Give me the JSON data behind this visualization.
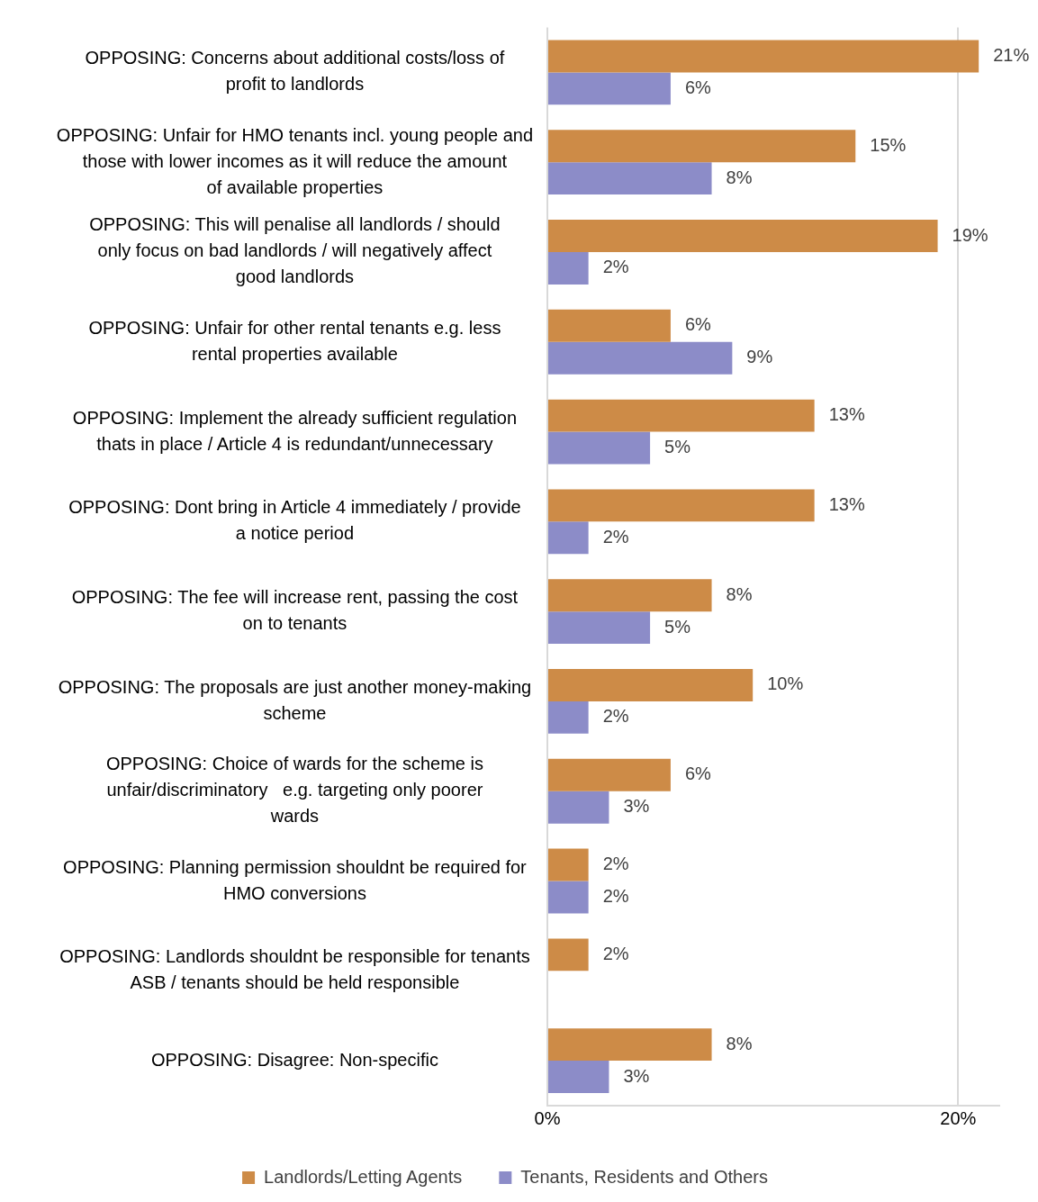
{
  "chart_data": {
    "type": "bar",
    "orientation": "horizontal",
    "categories": [
      "OPPOSING: Concerns about additional costs/loss of profit to landlords",
      "OPPOSING: Unfair for HMO tenants incl. young people and those with lower incomes as it will reduce the amount of available properties",
      "OPPOSING: This will penalise all landlords / should only focus on bad landlords / will negatively affect good landlords",
      "OPPOSING: Unfair for other rental tenants e.g. less rental properties available",
      "OPPOSING: Implement the already sufficient regulation thats in place / Article 4 is redundant/unnecessary",
      "OPPOSING: Dont bring in Article 4 immediately / provide a notice period",
      "OPPOSING: The fee will increase rent, passing the cost on to tenants",
      "OPPOSING: The proposals are just another money-making scheme",
      "OPPOSING: Choice of wards for the scheme is unfair/discriminatory   e.g. targeting only poorer wards",
      "OPPOSING: Planning permission shouldnt be required for HMO conversions",
      "OPPOSING: Landlords shouldnt be responsible for tenants ASB / tenants should be held responsible",
      "OPPOSING: Disagree: Non-specific"
    ],
    "series": [
      {
        "name": "Landlords/Letting Agents",
        "color": "#cd8b47",
        "values": [
          21,
          15,
          19,
          6,
          13,
          13,
          8,
          10,
          6,
          2,
          2,
          8
        ],
        "value_labels": [
          "21%",
          "15%",
          "19%",
          "6%",
          "13%",
          "13%",
          "8%",
          "10%",
          "6%",
          "2%",
          "2%",
          "8%"
        ]
      },
      {
        "name": "Tenants, Residents and Others",
        "color": "#8c8cc8",
        "values": [
          6,
          8,
          2,
          9,
          5,
          2,
          5,
          2,
          3,
          2,
          null,
          3
        ],
        "value_labels": [
          "6%",
          "8%",
          "2%",
          "9%",
          "5%",
          "2%",
          "5%",
          "2%",
          "3%",
          "2%",
          null,
          "3%"
        ]
      }
    ],
    "xlim": [
      0,
      22
    ],
    "xticks": [
      {
        "value": 0,
        "label": "0%"
      },
      {
        "value": 20,
        "label": "20%"
      }
    ],
    "grid": "x",
    "legend": "bottom"
  }
}
